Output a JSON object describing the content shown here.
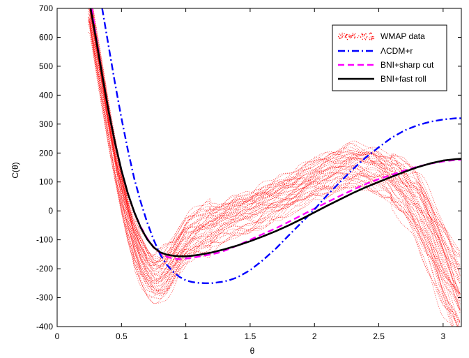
{
  "chart_data": {
    "type": "line",
    "title": "",
    "xlabel": "θ",
    "ylabel": "C(θ)",
    "xlim": [
      0,
      3.14159
    ],
    "ylim": [
      -400,
      700
    ],
    "xticks": [
      "0",
      "0.5",
      "1",
      "1.5",
      "2",
      "2.5",
      "3"
    ],
    "yticks": [
      "-400",
      "-300",
      "-200",
      "-100",
      "0",
      "100",
      "200",
      "300",
      "400",
      "500",
      "600",
      "700"
    ],
    "grid": false,
    "legend_position": "top-right",
    "series": [
      {
        "name": "WMAP data",
        "color": "#ff0000",
        "style": "scatter-band",
        "x": [
          0.25,
          0.3,
          0.35,
          0.4,
          0.45,
          0.5,
          0.55,
          0.6,
          0.65,
          0.7,
          0.75,
          0.8,
          0.85,
          0.9,
          0.95,
          1.0,
          1.1,
          1.2,
          1.3,
          1.4,
          1.5,
          1.6,
          1.7,
          1.8,
          1.9,
          2.0,
          2.1,
          2.2,
          2.3,
          2.4,
          2.5,
          2.6,
          2.7,
          2.8,
          2.9,
          3.0,
          3.14
        ],
        "y": [
          700,
          560,
          430,
          300,
          180,
          70,
          -30,
          -110,
          -170,
          -210,
          -230,
          -225,
          -205,
          -175,
          -140,
          -110,
          -80,
          -60,
          -40,
          -20,
          -5,
          20,
          40,
          60,
          80,
          100,
          120,
          140,
          150,
          150,
          140,
          110,
          60,
          0,
          -90,
          -200,
          -320
        ]
      },
      {
        "name": "ΛCDM+r",
        "color": "#0000ff",
        "style": "dashdot",
        "x": [
          0.35,
          0.4,
          0.45,
          0.5,
          0.55,
          0.6,
          0.65,
          0.7,
          0.75,
          0.8,
          0.85,
          0.9,
          0.95,
          1.0,
          1.05,
          1.1,
          1.15,
          1.2,
          1.25,
          1.3,
          1.35,
          1.4,
          1.5,
          1.6,
          1.7,
          1.8,
          1.9,
          2.0,
          2.1,
          2.2,
          2.3,
          2.4,
          2.5,
          2.6,
          2.7,
          2.8,
          2.9,
          3.0,
          3.1,
          3.14
        ],
        "y": [
          700,
          570,
          440,
          320,
          210,
          110,
          30,
          -40,
          -100,
          -150,
          -185,
          -210,
          -228,
          -240,
          -246,
          -249,
          -250,
          -250,
          -247,
          -244,
          -238,
          -230,
          -205,
          -170,
          -130,
          -85,
          -40,
          5,
          55,
          100,
          145,
          185,
          220,
          253,
          278,
          296,
          308,
          316,
          320,
          320
        ]
      },
      {
        "name": "BNI+sharp cut",
        "color": "#ff00ff",
        "style": "dashed",
        "x": [
          0.27,
          0.3,
          0.35,
          0.4,
          0.45,
          0.5,
          0.55,
          0.6,
          0.65,
          0.7,
          0.75,
          0.8,
          0.85,
          0.9,
          0.95,
          1.0,
          1.05,
          1.1,
          1.15,
          1.2,
          1.25,
          1.3,
          1.4,
          1.5,
          1.6,
          1.7,
          1.8,
          1.9,
          2.0,
          2.1,
          2.2,
          2.3,
          2.4,
          2.5,
          2.6,
          2.7,
          2.8,
          2.9,
          3.0,
          3.1,
          3.14
        ],
        "y": [
          700,
          610,
          470,
          345,
          235,
          140,
          60,
          -5,
          -55,
          -95,
          -125,
          -145,
          -158,
          -165,
          -167,
          -165,
          -162,
          -158,
          -154,
          -150,
          -145,
          -138,
          -120,
          -100,
          -80,
          -60,
          -38,
          -15,
          8,
          30,
          52,
          73,
          93,
          110,
          125,
          140,
          153,
          163,
          171,
          176,
          177
        ]
      },
      {
        "name": "BNI+fast roll",
        "color": "#000000",
        "style": "solid",
        "x": [
          0.26,
          0.3,
          0.35,
          0.4,
          0.45,
          0.5,
          0.55,
          0.6,
          0.65,
          0.7,
          0.75,
          0.8,
          0.85,
          0.9,
          0.95,
          1.0,
          1.05,
          1.1,
          1.2,
          1.3,
          1.4,
          1.5,
          1.6,
          1.7,
          1.8,
          1.9,
          2.0,
          2.1,
          2.2,
          2.3,
          2.4,
          2.5,
          2.6,
          2.7,
          2.8,
          2.9,
          3.0,
          3.1,
          3.14
        ],
        "y": [
          700,
          600,
          470,
          345,
          235,
          140,
          60,
          -5,
          -58,
          -98,
          -126,
          -143,
          -151,
          -155,
          -157,
          -157,
          -155,
          -152,
          -144,
          -133,
          -120,
          -105,
          -88,
          -70,
          -50,
          -28,
          -5,
          18,
          40,
          62,
          82,
          100,
          118,
          135,
          151,
          164,
          174,
          179,
          180
        ]
      }
    ]
  }
}
